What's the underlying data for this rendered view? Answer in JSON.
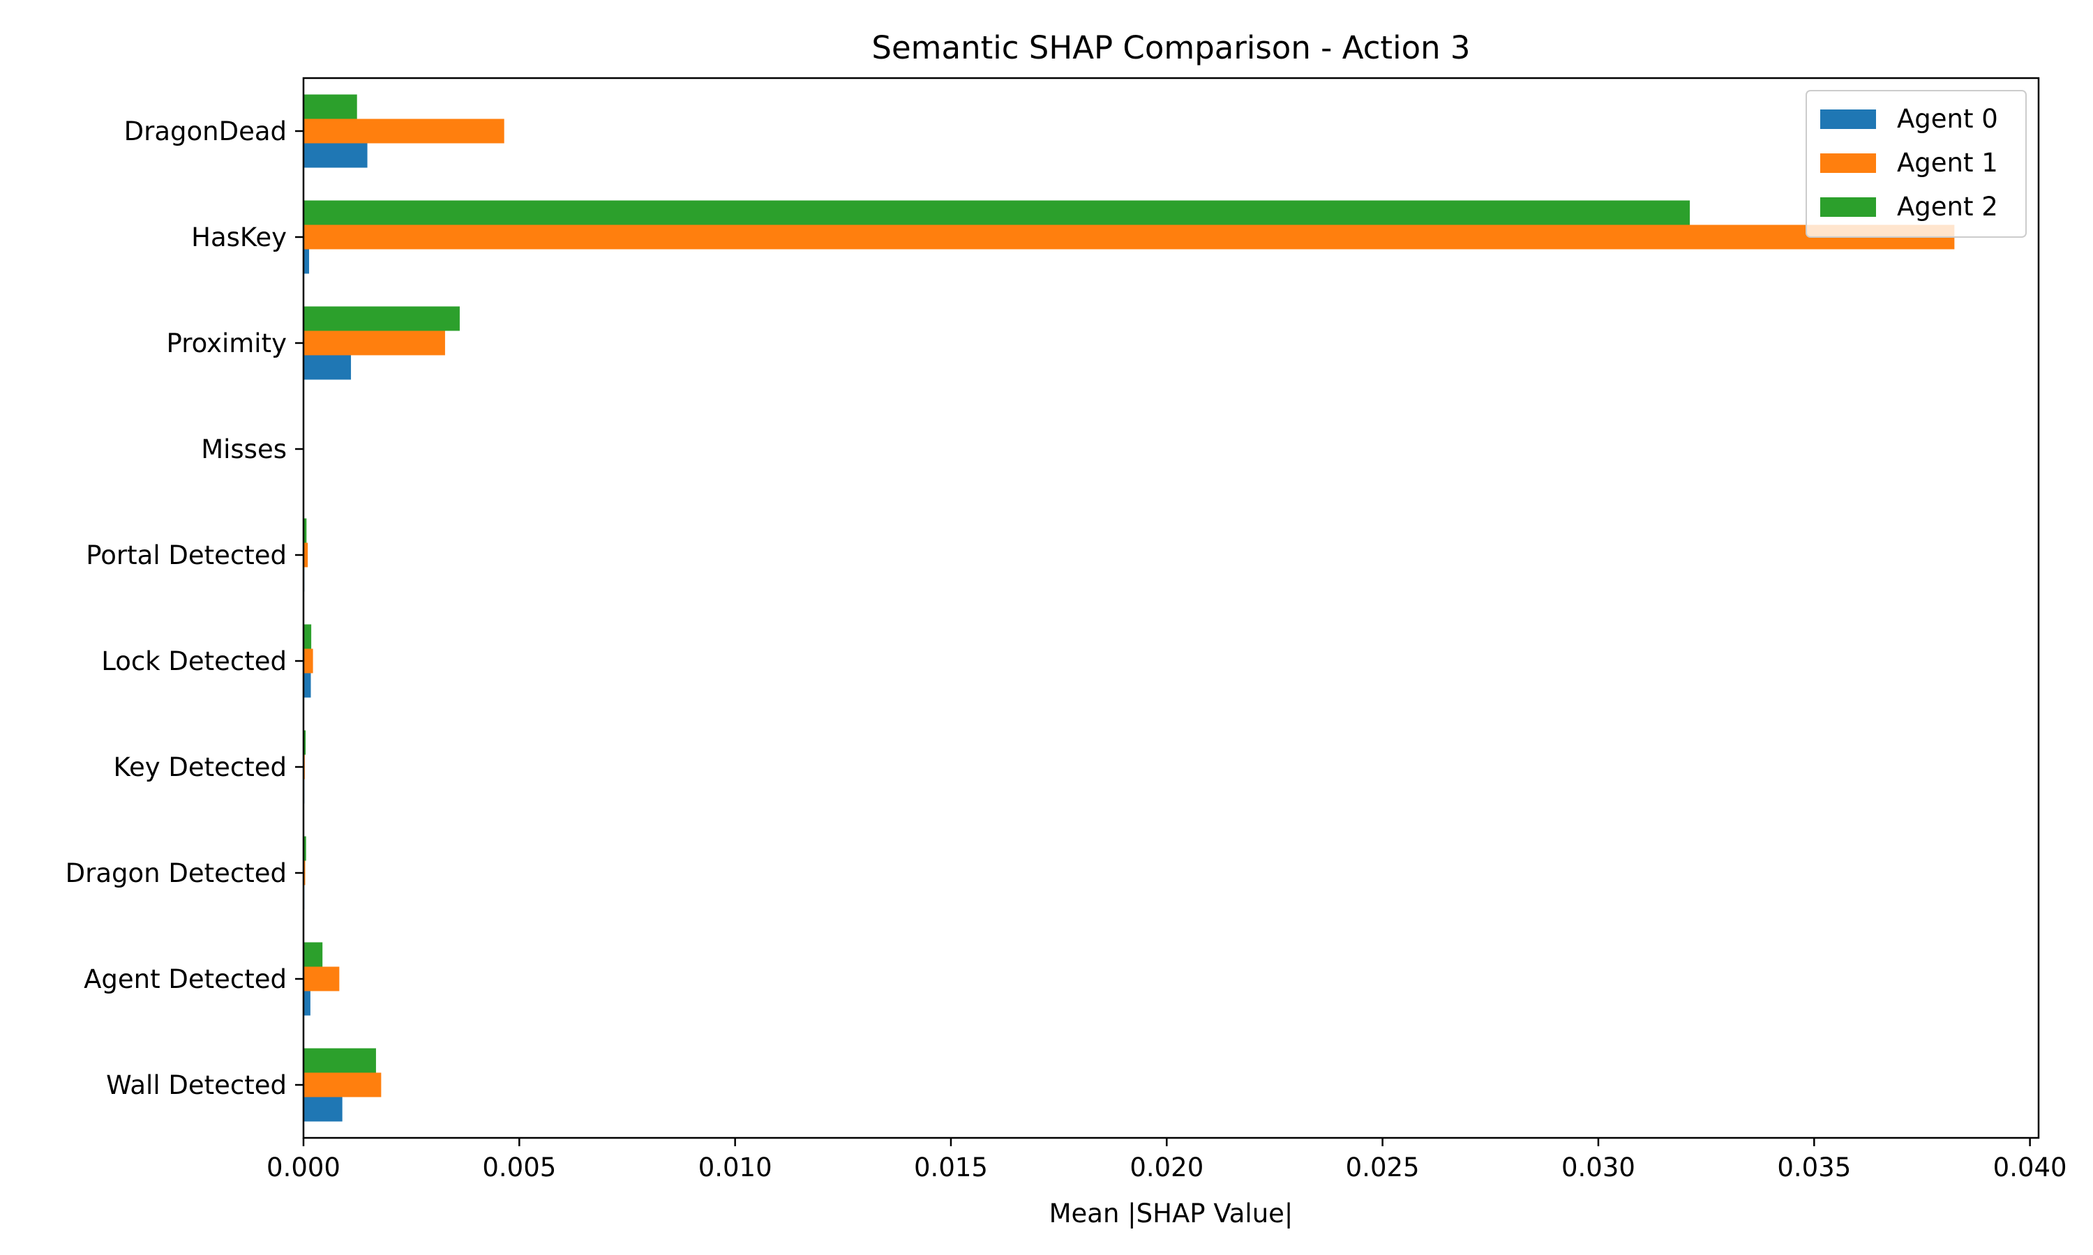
{
  "chart_data": {
    "type": "bar",
    "orientation": "horizontal",
    "title": "Semantic SHAP Comparison - Action 3",
    "xlabel": "Mean |SHAP Value|",
    "ylabel": "",
    "xlim": [
      0,
      0.0402
    ],
    "xticks": [
      "0.000",
      "0.005",
      "0.010",
      "0.015",
      "0.020",
      "0.025",
      "0.030",
      "0.035",
      "0.040"
    ],
    "grid": false,
    "legend_position": "top-right",
    "categories": [
      "DragonDead",
      "HasKey",
      "Proximity",
      "Misses",
      "Portal Detected",
      "Lock Detected",
      "Key Detected",
      "Dragon Detected",
      "Agent Detected",
      "Wall Detected"
    ],
    "series": [
      {
        "name": "Agent 0",
        "color": "#1f77b4",
        "values": [
          0.00148,
          0.00013,
          0.0011,
          0.0,
          2e-05,
          0.00017,
          2e-05,
          2e-05,
          0.00016,
          0.0009
        ]
      },
      {
        "name": "Agent 1",
        "color": "#ff7f0e",
        "values": [
          0.00465,
          0.03825,
          0.00328,
          0.0,
          0.0001,
          0.00022,
          3e-05,
          4e-05,
          0.00083,
          0.0018
        ]
      },
      {
        "name": "Agent 2",
        "color": "#2ca02c",
        "values": [
          0.00124,
          0.03212,
          0.00362,
          0.0,
          7e-05,
          0.00018,
          5e-05,
          6e-05,
          0.00044,
          0.00168
        ]
      }
    ]
  }
}
